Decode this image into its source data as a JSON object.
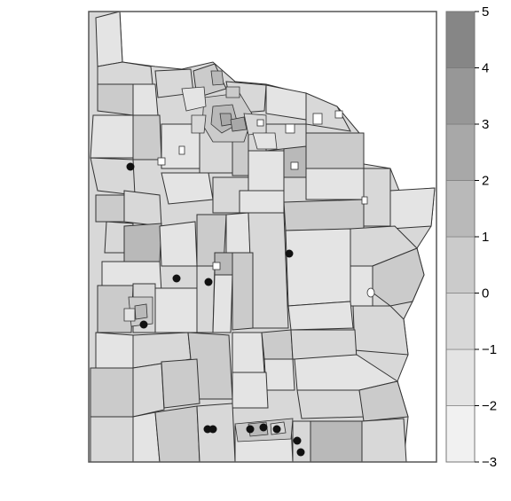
{
  "legend": {
    "min": -3,
    "max": 5,
    "bins": [
      {
        "from": -3,
        "to": -2,
        "color": "#f1f1f1"
      },
      {
        "from": -2,
        "to": -1,
        "color": "#e4e4e4"
      },
      {
        "from": -1,
        "to": 0,
        "color": "#d8d8d8"
      },
      {
        "from": 0,
        "to": 1,
        "color": "#cbcbcb"
      },
      {
        "from": 1,
        "to": 2,
        "color": "#b9b9b9"
      },
      {
        "from": 2,
        "to": 3,
        "color": "#a8a8a8"
      },
      {
        "from": 3,
        "to": 4,
        "color": "#979797"
      },
      {
        "from": 4,
        "to": 5,
        "color": "#868686"
      }
    ],
    "ticks": [
      "5",
      "4",
      "3",
      "2",
      "1",
      "0",
      "−1",
      "−2",
      "−3"
    ]
  },
  "colors": {
    "border": "#333333",
    "frame": "#555555",
    "point": "#111111"
  }
}
